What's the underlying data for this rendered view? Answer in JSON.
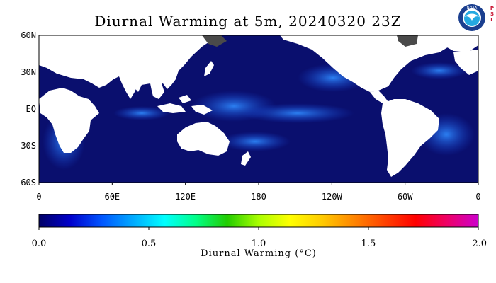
{
  "title": "Diurnal Warming at 5m, 20240320 23Z",
  "logo": {
    "name": "NOAA",
    "text": "NOAA",
    "tag": [
      "P",
      "S",
      "L"
    ],
    "colors": {
      "outer": "#1b3f8f",
      "ring": "#ffffff",
      "inner": "#24a9e1",
      "bird": "#ffffff"
    }
  },
  "map": {
    "y_axis_labels": [
      "60N",
      "30N",
      "EQ",
      "30S",
      "60S"
    ],
    "x_axis_labels": [
      "0",
      "60E",
      "120E",
      "180",
      "120W",
      "60W",
      "0"
    ],
    "lat_range": [
      -60,
      60
    ],
    "lon_range": [
      0,
      360
    ],
    "ocean_color": "#0a0f6e",
    "land_color": "#ffffff",
    "ice_color": "#4a4a4a",
    "highlight_color": "#1f7bff"
  },
  "colorbar": {
    "ticks": [
      "0.0",
      "0.5",
      "1.0",
      "1.5",
      "2.0"
    ],
    "range": [
      0.0,
      2.0
    ],
    "title": "Diurnal Warming (°C)",
    "colors": [
      "#000066",
      "#0000cc",
      "#0055ff",
      "#00aaff",
      "#00ffff",
      "#00ff88",
      "#22cc00",
      "#aaff00",
      "#ffff00",
      "#ffcc00",
      "#ff8800",
      "#ff4400",
      "#ff0000",
      "#ee0066",
      "#cc00cc"
    ]
  }
}
